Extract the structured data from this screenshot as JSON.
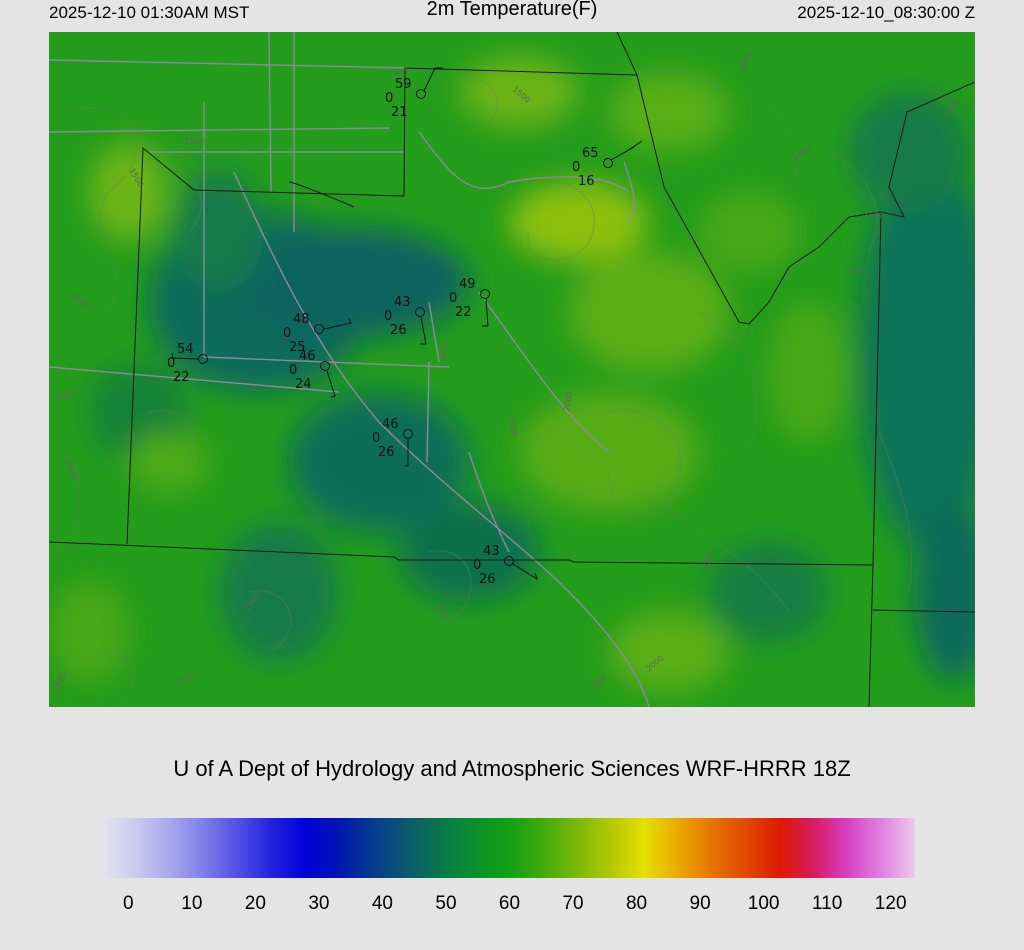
{
  "header": {
    "local_time": "2025-12-10 01:30AM MST",
    "title": "2m Temperature(F)",
    "valid_time": "2025-12-10_08:30:00 Z"
  },
  "credit": "U of A Dept of Hydrology and Atmospheric Sciences WRF-HRRR 18Z",
  "colorbar": {
    "ticks": [
      "0",
      "10",
      "20",
      "30",
      "40",
      "50",
      "60",
      "70",
      "80",
      "90",
      "100",
      "110",
      "120"
    ],
    "colors": [
      "#e2e2f2",
      "#c8c8ee",
      "#a6a6ec",
      "#7c7ce8",
      "#4e4ee6",
      "#2020e0",
      "#0000d8",
      "#0018b0",
      "#063c8c",
      "#0c5a6a",
      "#08784a",
      "#0a902a",
      "#12a014",
      "#42aa0c",
      "#7ab808",
      "#b4c804",
      "#e4e000",
      "#eaa800",
      "#e67400",
      "#e24800",
      "#dc1a00",
      "#d81a60",
      "#d640c4",
      "#e080e0",
      "#eccaec"
    ]
  },
  "contour_labels": [
    "300",
    "1500",
    "1500",
    "1000",
    "2000",
    "2000",
    "1500",
    "1500",
    "1500",
    "1500",
    "1500",
    "1000",
    "2000",
    "2000",
    "2000",
    "1500",
    "2000",
    "2000",
    "1500",
    "1500",
    "2000",
    "1500"
  ],
  "stations": [
    {
      "id": "stn-1",
      "temp": "59",
      "gust": "0",
      "dew": "21"
    },
    {
      "id": "stn-2",
      "temp": "65",
      "gust": "0",
      "dew": "16"
    },
    {
      "id": "stn-3",
      "temp": "49",
      "gust": "0",
      "dew": "22"
    },
    {
      "id": "stn-4",
      "temp": "43",
      "gust": "0",
      "dew": "26"
    },
    {
      "id": "stn-5",
      "temp": "48",
      "gust": "0",
      "dew": "25"
    },
    {
      "id": "stn-6",
      "temp": "54",
      "gust": "0",
      "dew": "22"
    },
    {
      "id": "stn-7",
      "temp": "46",
      "gust": "0",
      "dew": "24"
    },
    {
      "id": "stn-8",
      "temp": "46",
      "gust": "0",
      "dew": "26"
    },
    {
      "id": "stn-9",
      "temp": "43",
      "gust": "0",
      "dew": "26"
    }
  ]
}
